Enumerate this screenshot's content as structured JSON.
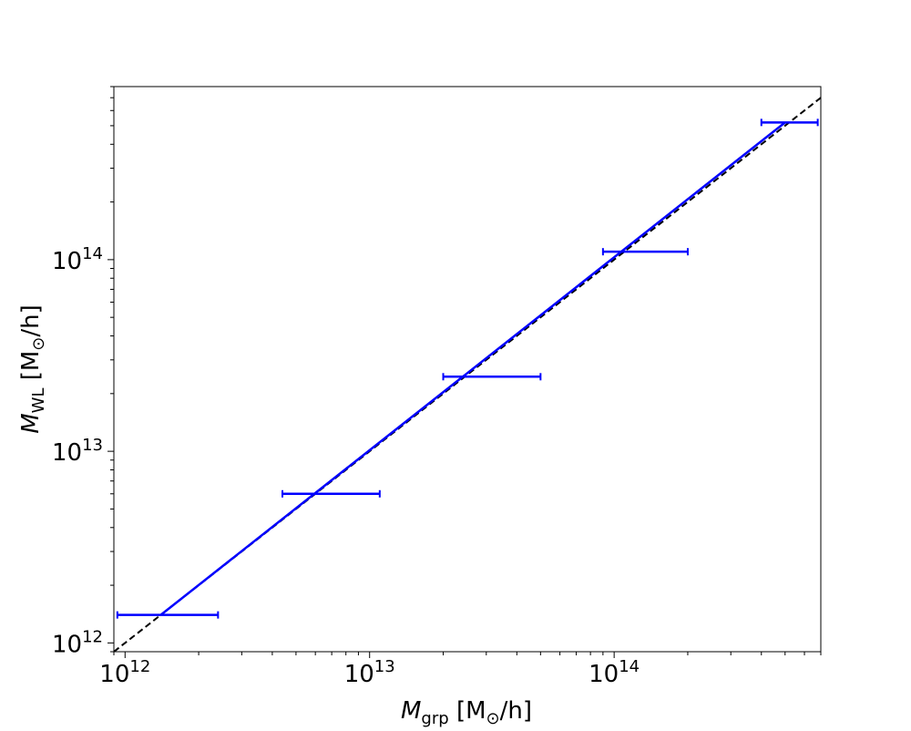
{
  "chart_data": {
    "type": "scatter",
    "xscale": "log",
    "yscale": "log",
    "xlim": [
      900000000000.0,
      700000000000000.0
    ],
    "ylim": [
      900000000000.0,
      800000000000000.0
    ],
    "xlabel": {
      "symbol": "M",
      "sub": "grp",
      "unit": "[M",
      "sun": "⊙",
      "unit_end": "/h]"
    },
    "ylabel": {
      "symbol": "M",
      "sub": "WL",
      "unit": "[M",
      "sun": "⊙",
      "unit_end": "/h]"
    },
    "x_ticks": [
      {
        "base": "10",
        "exp": "12",
        "value": 1000000000000.0
      },
      {
        "base": "10",
        "exp": "13",
        "value": 10000000000000.0
      },
      {
        "base": "10",
        "exp": "14",
        "value": 100000000000000.0
      }
    ],
    "y_ticks": [
      {
        "base": "10",
        "exp": "12",
        "value": 1000000000000.0
      },
      {
        "base": "10",
        "exp": "13",
        "value": 10000000000000.0
      },
      {
        "base": "10",
        "exp": "14",
        "value": 100000000000000.0
      }
    ],
    "grid": false,
    "colors": {
      "data": "#0000ff",
      "reference": "#000000"
    },
    "series": [
      {
        "type": "errorbar-x",
        "points": [
          {
            "x": 1400000000000.0,
            "y": 1400000000000.0,
            "xerr_low": 930000000000.0,
            "xerr_high": 2400000000000.0
          },
          {
            "x": 6200000000000.0,
            "y": 6000000000000.0,
            "xerr_low": 4400000000000.0,
            "xerr_high": 11000000000000.0
          },
          {
            "x": 28000000000000.0,
            "y": 24500000000000.0,
            "xerr_low": 20000000000000.0,
            "xerr_high": 50000000000000.0
          },
          {
            "x": 120000000000000.0,
            "y": 110000000000000.0,
            "xerr_low": 90000000000000.0,
            "xerr_high": 200000000000000.0
          },
          {
            "x": 500000000000000.0,
            "y": 520000000000000.0,
            "xerr_low": 400000000000000.0,
            "xerr_high": 680000000000000.0
          }
        ]
      },
      {
        "type": "line",
        "style": "solid",
        "x": [
          1400000000000.0,
          500000000000000.0
        ],
        "y": [
          1400000000000.0,
          520000000000000.0
        ]
      },
      {
        "type": "line",
        "style": "dashed",
        "x": [
          900000000000.0,
          800000000000000.0
        ],
        "y": [
          900000000000.0,
          800000000000000.0
        ]
      }
    ]
  }
}
